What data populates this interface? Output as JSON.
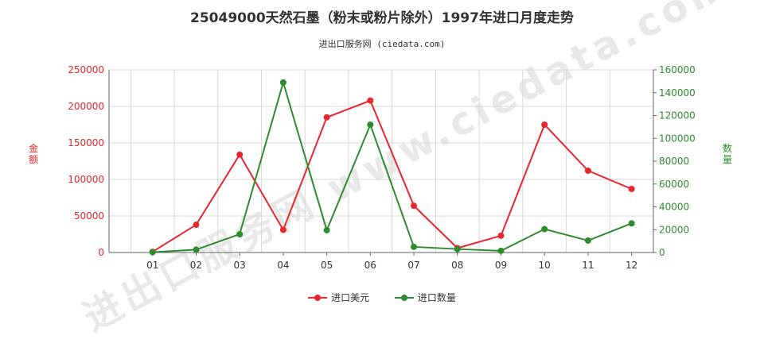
{
  "title": "25049000天然石墨（粉末或粉片除外）1997年进口月度走势",
  "subtitle": "进出口服务网 (ciedata.com)",
  "watermark": "进出口服务网 www.ciedata.com",
  "colors": {
    "amount": "#e8262d",
    "quantity": "#2e8b2e",
    "grid": "#d9d9d9",
    "axis": "#666666"
  },
  "chart_data": {
    "type": "line",
    "categories": [
      "01",
      "02",
      "03",
      "04",
      "05",
      "06",
      "07",
      "08",
      "09",
      "10",
      "11",
      "12"
    ],
    "y_left": {
      "label": "金额",
      "ylim": [
        0,
        250000
      ],
      "ticks": [
        0,
        50000,
        100000,
        150000,
        200000,
        250000
      ]
    },
    "y_right": {
      "label": "数量",
      "ylim": [
        0,
        160000
      ],
      "ticks": [
        0,
        20000,
        40000,
        60000,
        80000,
        100000,
        120000,
        140000,
        160000
      ]
    },
    "grid": true,
    "legend_placement": "bottom",
    "series": [
      {
        "name": "进口美元",
        "axis": "left",
        "color": "#e8262d",
        "values": [
          1000,
          38000,
          134000,
          31000,
          185000,
          208000,
          64000,
          6000,
          23000,
          175000,
          112000,
          87000
        ]
      },
      {
        "name": "进口数量",
        "axis": "right",
        "color": "#2e8b2e",
        "values": [
          300,
          2500,
          16000,
          149000,
          19500,
          112000,
          5000,
          3000,
          1500,
          20500,
          10500,
          25500
        ]
      }
    ]
  }
}
